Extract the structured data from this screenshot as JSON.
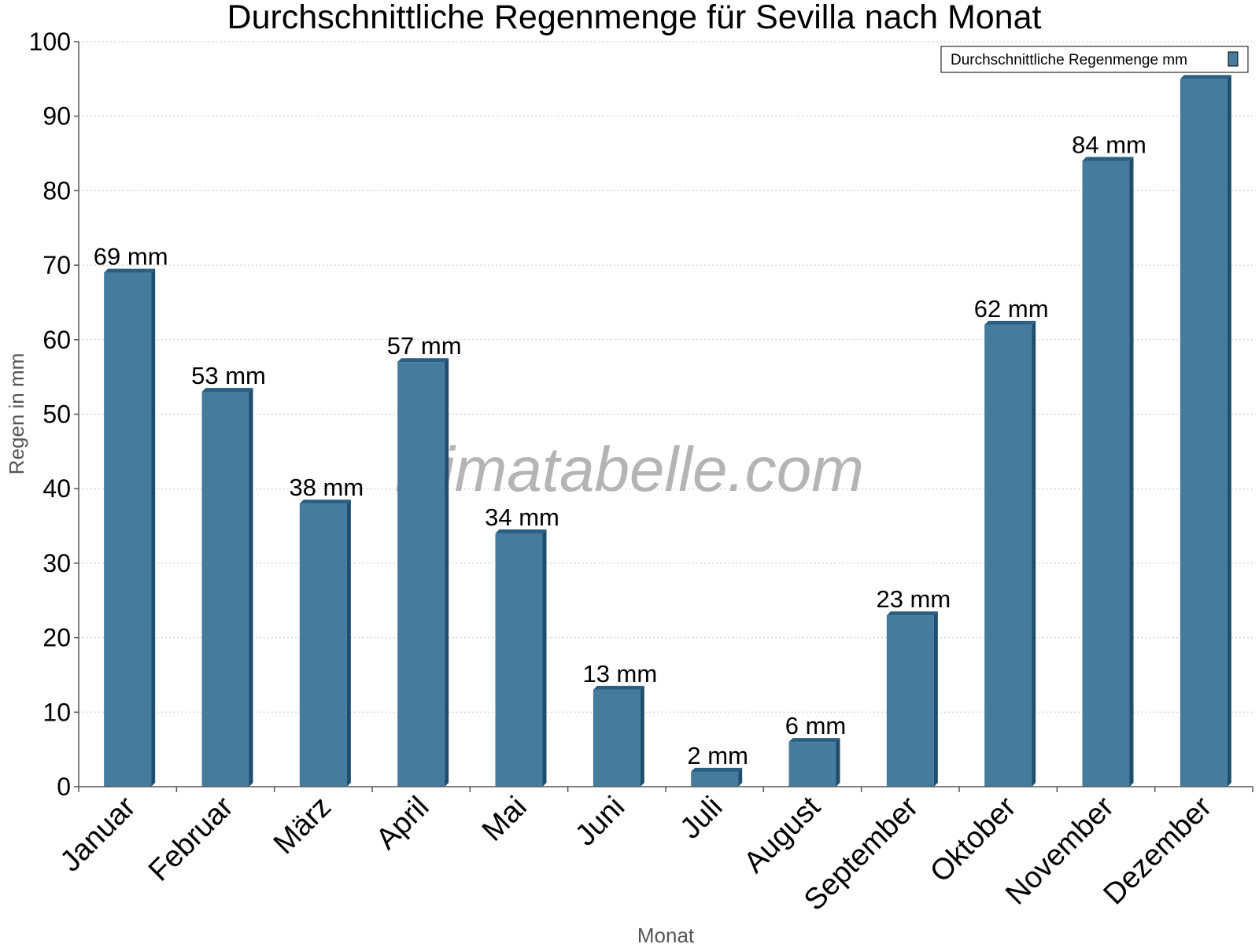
{
  "watermark": "klimatabelle.com",
  "colors": {
    "bar_front": "#457b9d",
    "bar_side": "#1d4e6e",
    "bar_top": "#2a5f82",
    "grid": "#c8c8c8",
    "axis": "#555555"
  },
  "chart_data": {
    "type": "bar",
    "title": "Durchschnittliche Regenmenge für Sevilla nach Monat",
    "xlabel": "Monat",
    "ylabel": "Regen in mm",
    "ylim": [
      0,
      100
    ],
    "yticks": [
      0,
      10,
      20,
      30,
      40,
      50,
      60,
      70,
      80,
      90,
      100
    ],
    "grid": true,
    "legend_position": "top-right",
    "categories": [
      "Januar",
      "Februar",
      "März",
      "April",
      "Mai",
      "Juni",
      "Juli",
      "August",
      "September",
      "Oktober",
      "November",
      "Dezember"
    ],
    "series": [
      {
        "name": "Durchschnittliche Regenmenge mm",
        "values": [
          69,
          53,
          38,
          57,
          34,
          13,
          2,
          6,
          23,
          62,
          84,
          95
        ],
        "labels": [
          "69 mm",
          "53 mm",
          "38 mm",
          "57 mm",
          "34 mm",
          "13 mm",
          "2 mm",
          "6 mm",
          "23 mm",
          "62 mm",
          "84 mm",
          ""
        ]
      }
    ]
  }
}
